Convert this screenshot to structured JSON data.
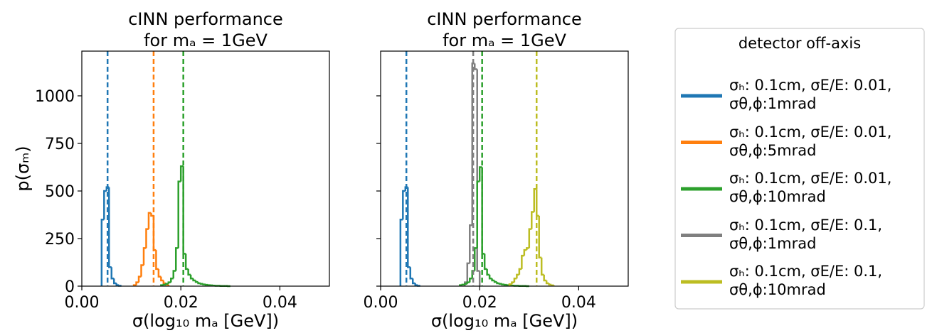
{
  "chart_data": [
    {
      "type": "histogram",
      "title": "cINN performance\nfor mₐ = 1GeV",
      "x_label": "σ(log₁₀ mₐ [GeV])",
      "y_label": "p(σₘ)",
      "xlim": [
        0,
        0.05
      ],
      "ylim": [
        0,
        1235
      ],
      "xticks": [
        {
          "value": 0,
          "label": "0.00"
        },
        {
          "value": 0.02,
          "label": "0.02"
        },
        {
          "value": 0.04,
          "label": "0.04"
        }
      ],
      "yticks": [
        0,
        250,
        500,
        750,
        1000
      ],
      "ytick_labels": true,
      "series": [
        {
          "name": "σₕ:   0.1cm, σE/E: 0.01,\nσθ,ϕ:1mrad",
          "color": "#1f77b4",
          "mean": 0.0052,
          "bins": [
            0.004,
            0.0045,
            0.005,
            0.0055,
            0.006,
            0.0065,
            0.007,
            0.0075,
            0.008
          ],
          "values": [
            350,
            500,
            520,
            100,
            40,
            15,
            5,
            2
          ]
        },
        {
          "name": "σₕ:   0.1cm, σE/E: 0.01,\nσθ,ϕ:5mrad",
          "color": "#ff7f0e",
          "mean": 0.0145,
          "bins": [
            0.0105,
            0.011,
            0.0115,
            0.012,
            0.0125,
            0.013,
            0.0135,
            0.014,
            0.0145,
            0.015,
            0.0155,
            0.016,
            0.0165,
            0.017,
            0.0175
          ],
          "values": [
            5,
            20,
            50,
            110,
            200,
            300,
            385,
            370,
            190,
            90,
            50,
            30,
            15,
            8
          ]
        },
        {
          "name": "σₕ:   0.1cm, σE/E: 0.01,\nσθ,ϕ:10mrad",
          "color": "#2ca02c",
          "mean": 0.0205,
          "bins": [
            0.016,
            0.0165,
            0.017,
            0.0175,
            0.018,
            0.0185,
            0.019,
            0.0195,
            0.02,
            0.0205,
            0.021,
            0.0215,
            0.022,
            0.0225,
            0.023,
            0.0235,
            0.024,
            0.0245,
            0.025,
            0.0255,
            0.026,
            0.0265,
            0.027,
            0.0275,
            0.028,
            0.0285,
            0.029,
            0.0295,
            0.03
          ],
          "values": [
            5,
            8,
            12,
            20,
            40,
            80,
            200,
            550,
            630,
            170,
            90,
            60,
            40,
            30,
            22,
            15,
            12,
            9,
            7,
            5,
            4,
            3,
            2,
            2,
            1,
            1,
            1,
            0
          ]
        }
      ]
    },
    {
      "type": "histogram",
      "title": "cINN performance\nfor mₐ = 1GeV",
      "x_label": "σ(log₁₀ mₐ [GeV])",
      "xlim": [
        0,
        0.05
      ],
      "ylim": [
        0,
        1235
      ],
      "xticks": [
        {
          "value": 0,
          "label": "0.00"
        },
        {
          "value": 0.02,
          "label": "0.02"
        },
        {
          "value": 0.04,
          "label": "0.04"
        }
      ],
      "yticks": [
        0,
        250,
        500,
        750,
        1000
      ],
      "ytick_labels": false,
      "legend_title": "detector off-axis",
      "series": [
        {
          "name": "σₕ:   0.1cm, σE/E: 0.01,\nσθ,ϕ:1mrad",
          "color": "#1f77b4",
          "mean": 0.0052,
          "bins": [
            0.004,
            0.0045,
            0.005,
            0.0055,
            0.006,
            0.0065,
            0.007,
            0.0075,
            0.008
          ],
          "values": [
            350,
            500,
            520,
            100,
            40,
            15,
            5,
            2
          ]
        },
        {
          "name": "σₕ:   0.1cm, σE/E: 0.1,\nσθ,ϕ:1mrad",
          "color": "#7f7f7f",
          "mean": 0.0187,
          "bins": [
            0.017,
            0.0175,
            0.018,
            0.0185,
            0.019,
            0.0195,
            0.02
          ],
          "values": [
            20,
            120,
            320,
            1170,
            1140,
            80
          ]
        },
        {
          "name": "σₕ:   0.1cm, σE/E: 0.01,\nσθ,ϕ:10mrad",
          "color": "#2ca02c",
          "mean": 0.0205,
          "bins": [
            0.016,
            0.0165,
            0.017,
            0.0175,
            0.018,
            0.0185,
            0.019,
            0.0195,
            0.02,
            0.0205,
            0.021,
            0.0215,
            0.022,
            0.0225,
            0.023,
            0.0235,
            0.024,
            0.0245,
            0.025,
            0.0255,
            0.026,
            0.0265,
            0.027,
            0.0275,
            0.028,
            0.0285,
            0.029,
            0.0295,
            0.03
          ],
          "values": [
            5,
            8,
            12,
            20,
            40,
            80,
            200,
            550,
            625,
            170,
            90,
            60,
            40,
            30,
            22,
            15,
            12,
            9,
            7,
            5,
            4,
            3,
            2,
            2,
            1,
            1,
            1,
            0
          ]
        },
        {
          "name": "σₕ:   0.1cm, σE/E: 0.1,\nσθ,ϕ:10mrad",
          "color": "#bcbd22",
          "mean": 0.0315,
          "bins": [
            0.026,
            0.0265,
            0.027,
            0.0275,
            0.028,
            0.0285,
            0.029,
            0.0295,
            0.03,
            0.0305,
            0.031,
            0.0315,
            0.032,
            0.0325,
            0.033,
            0.0335,
            0.034,
            0.0345,
            0.035
          ],
          "values": [
            10,
            20,
            40,
            60,
            90,
            160,
            190,
            200,
            300,
            390,
            510,
            370,
            150,
            60,
            30,
            15,
            8,
            4
          ]
        }
      ]
    }
  ]
}
